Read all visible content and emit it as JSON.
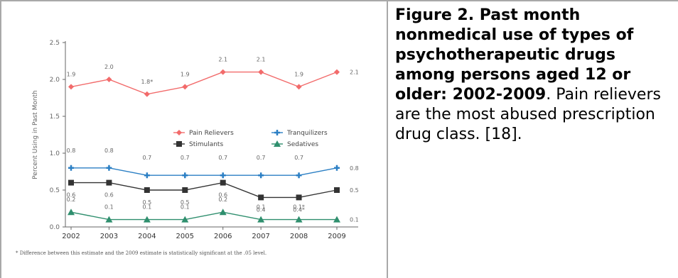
{
  "caption": {
    "title": "Figure 2. Past month nonmedical use of types of psychotherapeutic drugs among persons aged 12 or older: 2002-2009",
    "body": ". Pain relievers are the most abused prescription drug class. [18]."
  },
  "chart_data": {
    "type": "line",
    "title": "",
    "xlabel": "",
    "ylabel": "Percent Using in Past Month",
    "ylim": [
      0,
      2.5
    ],
    "yticks": [
      "0.0",
      "0.5",
      "1.0",
      "1.5",
      "2.0",
      "2.5"
    ],
    "categories": [
      "2002",
      "2003",
      "2004",
      "2005",
      "2006",
      "2007",
      "2008",
      "2009"
    ],
    "grid": false,
    "legend_position": "center",
    "series": [
      {
        "name": "Pain Relievers",
        "color": "#f26b6b",
        "marker": "diamond",
        "values": [
          1.9,
          2.0,
          1.8,
          1.9,
          2.1,
          2.1,
          1.9,
          2.1
        ],
        "labels": [
          "1.9",
          "2.0",
          "1.8*",
          "1.9",
          "2.1",
          "2.1",
          "1.9",
          "2.1"
        ]
      },
      {
        "name": "Tranquilizers",
        "color": "#2b7fc4",
        "marker": "cross",
        "values": [
          0.8,
          0.8,
          0.7,
          0.7,
          0.7,
          0.7,
          0.7,
          0.8
        ],
        "labels": [
          "0.8",
          "0.8",
          "0.7",
          "0.7",
          "0.7",
          "0.7",
          "0.7",
          "0.8"
        ]
      },
      {
        "name": "Stimulants",
        "color": "#333333",
        "marker": "square",
        "values": [
          0.6,
          0.6,
          0.5,
          0.5,
          0.6,
          0.4,
          0.4,
          0.5
        ],
        "labels": [
          "0.6",
          "0.6",
          "0.5",
          "0.5",
          "0.6",
          "0.4",
          "0.4*",
          "0.5"
        ]
      },
      {
        "name": "Sedatives",
        "color": "#2f8f6e",
        "marker": "triangle",
        "values": [
          0.2,
          0.1,
          0.1,
          0.1,
          0.2,
          0.1,
          0.1,
          0.1
        ],
        "labels": [
          "0.2",
          "0.1",
          "0.1",
          "0.1",
          "0.2",
          "0.1",
          "0.1*",
          "0.1"
        ]
      }
    ],
    "footnote": "* Difference between this estimate and the 2009 estimate is statistically significant at the .05 level."
  }
}
